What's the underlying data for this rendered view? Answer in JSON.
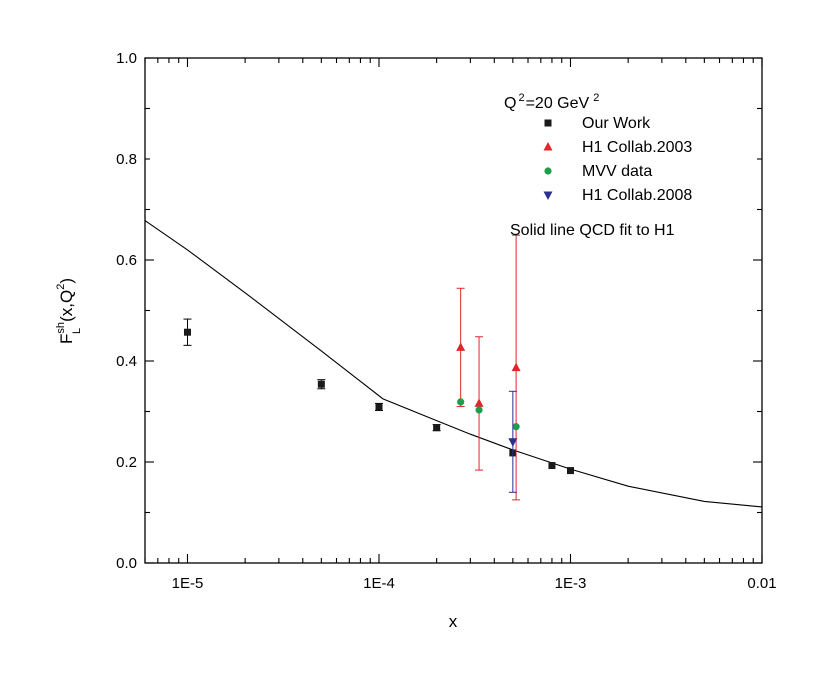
{
  "chart_data": {
    "type": "scatter",
    "xscale": "log",
    "xlim": [
      6e-06,
      0.01
    ],
    "ylim": [
      0.0,
      1.0
    ],
    "xlabel": "x",
    "ylabel": {
      "main": "F",
      "sup": "sh",
      "sub": "L",
      "rest": "(x,Q",
      "rest_sup": "2",
      "close": ")"
    },
    "x_ticks": [
      {
        "value": 1e-05,
        "label": "1E-5"
      },
      {
        "value": 0.0001,
        "label": "1E-4"
      },
      {
        "value": 0.001,
        "label": "1E-3"
      },
      {
        "value": 0.01,
        "label": "0.01"
      }
    ],
    "y_ticks": [
      {
        "value": 0.0,
        "label": "0.0"
      },
      {
        "value": 0.2,
        "label": "0.2"
      },
      {
        "value": 0.4,
        "label": "0.4"
      },
      {
        "value": 0.6,
        "label": "0.6"
      },
      {
        "value": 0.8,
        "label": "0.8"
      },
      {
        "value": 1.0,
        "label": "1.0"
      }
    ],
    "legend": {
      "position": "top-right",
      "title": {
        "main": "Q",
        "sup1": "2",
        "mid": "=20 GeV",
        "sup2": "2"
      },
      "note": "Solid line QCD fit to H1"
    },
    "series": [
      {
        "name": "Our Work",
        "marker": "square",
        "color": "#1a1a1a",
        "points": [
          {
            "x": 1e-05,
            "y": 0.457,
            "err": 0.026
          },
          {
            "x": 5e-05,
            "y": 0.354,
            "err": 0.009
          },
          {
            "x": 0.0001,
            "y": 0.309,
            "err": 0.007
          },
          {
            "x": 0.0002,
            "y": 0.268,
            "err": 0.006
          },
          {
            "x": 0.0005,
            "y": 0.218,
            "err": 0.0
          },
          {
            "x": 0.0008,
            "y": 0.193,
            "err": 0.0
          },
          {
            "x": 0.001,
            "y": 0.183,
            "err": 0.0
          }
        ]
      },
      {
        "name": "H1 Collab.2003",
        "marker": "triangle-up",
        "color": "#e0262b",
        "points": [
          {
            "x": 0.000267,
            "y": 0.427,
            "err_up": 0.117,
            "err_down": 0.117
          },
          {
            "x": 0.000333,
            "y": 0.316,
            "err_up": 0.132,
            "err_down": 0.132
          },
          {
            "x": 0.00052,
            "y": 0.387,
            "err_up": 0.262,
            "err_down": 0.262
          }
        ]
      },
      {
        "name": "MVV data",
        "marker": "circle",
        "color": "#1e9e4a",
        "points": [
          {
            "x": 0.000267,
            "y": 0.319
          },
          {
            "x": 0.000333,
            "y": 0.303
          },
          {
            "x": 0.00052,
            "y": 0.27
          }
        ]
      },
      {
        "name": "H1 Collab.2008",
        "marker": "triangle-down",
        "color": "#2b2f8f",
        "points": [
          {
            "x": 0.0005,
            "y": 0.24,
            "err_up": 0.1,
            "err_down": 0.1
          }
        ]
      }
    ],
    "fit_line": {
      "color": "#000000",
      "points": [
        {
          "x": 6e-06,
          "y": 0.678
        },
        {
          "x": 1e-05,
          "y": 0.62
        },
        {
          "x": 2e-05,
          "y": 0.535
        },
        {
          "x": 5e-05,
          "y": 0.42
        },
        {
          "x": 0.000105,
          "y": 0.325
        },
        {
          "x": 0.0002,
          "y": 0.282
        },
        {
          "x": 0.0003,
          "y": 0.255
        },
        {
          "x": 0.0005,
          "y": 0.224
        },
        {
          "x": 0.001,
          "y": 0.186
        },
        {
          "x": 0.002,
          "y": 0.152
        },
        {
          "x": 0.005,
          "y": 0.122
        },
        {
          "x": 0.01,
          "y": 0.111
        }
      ]
    }
  }
}
